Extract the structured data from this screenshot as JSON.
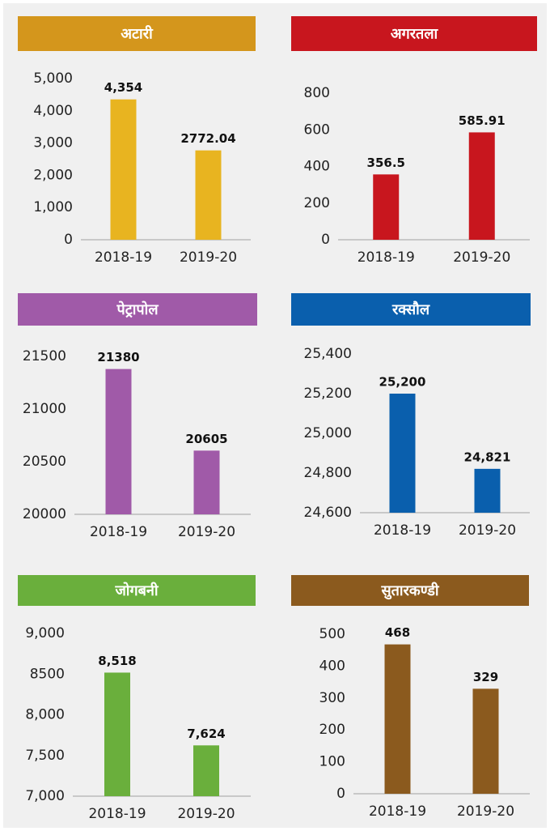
{
  "chart_data": [
    {
      "type": "bar",
      "title": "अटारी",
      "categories": [
        "2018-19",
        "2019-20"
      ],
      "values": [
        4354,
        2772.04
      ],
      "value_labels": [
        "4,354",
        "2772.04"
      ],
      "color": "#e8b420",
      "header_color": "#d4961c",
      "ylim": [
        0,
        5000
      ],
      "yticks": [
        0,
        {
          "value": 1000,
          "label": "1,000"
        },
        {
          "value": 2000,
          "label": "2,000"
        },
        {
          "value": 3000,
          "label": "3,000"
        },
        {
          "value": 4000,
          "label": "4,000"
        },
        {
          "value": 5000,
          "label": "5,000"
        }
      ]
    },
    {
      "type": "bar",
      "title": "अगरतला",
      "categories": [
        "2018-19",
        "2019-20"
      ],
      "values": [
        356.5,
        585.91
      ],
      "color": "#c8161e",
      "header_color": "#c8161e",
      "ylim": [
        0,
        800
      ],
      "yticks": [
        0,
        200,
        400,
        600,
        800
      ]
    },
    {
      "type": "bar",
      "title": "पेट्रापोल",
      "categories": [
        "2018-19",
        "2019-20"
      ],
      "values": [
        21380,
        20605
      ],
      "color": "#a05aa8",
      "header_color": "#a05aa8",
      "ylim": [
        20000,
        21500
      ],
      "yticks": [
        20000,
        20500,
        21000,
        21500
      ]
    },
    {
      "type": "bar",
      "title": "रक्सौल",
      "categories": [
        "2018-19",
        "2019-20"
      ],
      "values": [
        25200,
        24821
      ],
      "value_labels": [
        "25,200",
        "24,821"
      ],
      "color": "#0a5fad",
      "header_color": "#0a5fad",
      "ylim": [
        24600,
        25400
      ],
      "yticks": [
        {
          "value": 24600,
          "label": "24,600"
        },
        {
          "value": 24800,
          "label": "24,800"
        },
        {
          "value": 25000,
          "label": "25,000"
        },
        {
          "value": 25200,
          "label": "25,200"
        },
        {
          "value": 25400,
          "label": "25,400"
        }
      ]
    },
    {
      "type": "bar",
      "title": "जोगबनी",
      "categories": [
        "2018-19",
        "2019-20"
      ],
      "values": [
        8518,
        7624
      ],
      "value_labels": [
        "8,518",
        "7,624"
      ],
      "color": "#6aaf3c",
      "header_color": "#6aaf3c",
      "ylim": [
        7000,
        9000
      ],
      "yticks": [
        {
          "value": 7000,
          "label": "7,000"
        },
        {
          "value": 7500,
          "label": "7,500"
        },
        {
          "value": 8000,
          "label": "8,000"
        },
        8500,
        {
          "value": 9000,
          "label": "9,000"
        }
      ]
    },
    {
      "type": "bar",
      "title": "सुतारकण्डी",
      "categories": [
        "2018-19",
        "2019-20"
      ],
      "values": [
        468,
        329
      ],
      "color": "#8b5a1e",
      "header_color": "#8b5a1e",
      "ylim": [
        0,
        500
      ],
      "yticks": [
        0,
        100,
        200,
        300,
        400,
        500
      ]
    }
  ]
}
